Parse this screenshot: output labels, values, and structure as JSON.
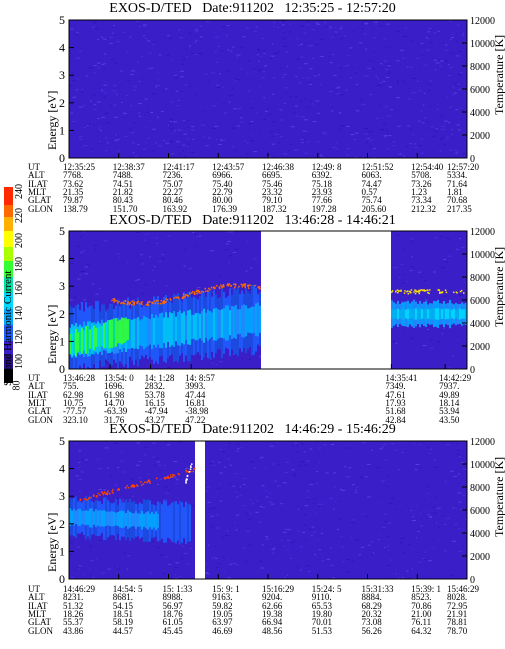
{
  "colors": {
    "background": "#3a1fc9",
    "speckle": [
      "#2a18b5",
      "#4a2fd9",
      "#3320c2",
      "#5a3be0"
    ],
    "spectrum": [
      "#1e90ff",
      "#00b0f0",
      "#00d9ff",
      "#00e38a",
      "#33ff33",
      "#ffff00",
      "#ff8c00",
      "#ff2200",
      "#d00000"
    ]
  },
  "colorbar": {
    "label": "Second Harmonic Current",
    "ticks": [
      "240",
      "220",
      "200",
      "180",
      "160",
      "140",
      "120",
      "100",
      "80"
    ]
  },
  "chart_data": [
    {
      "type": "heatmap",
      "title": "EXOS-D/TED   Date:911202   12:35:25 - 12:57:20",
      "ylabel": "Energy [eV]",
      "y2label": "Temperature [K]",
      "ylim": [
        0,
        5
      ],
      "y2lim": [
        0,
        12000
      ],
      "yticks": [
        "0",
        "1",
        "2",
        "3",
        "4",
        "5"
      ],
      "y2ticks": [
        "0",
        "2000",
        "4000",
        "6000",
        "8000",
        "10000",
        "12000"
      ],
      "ephemeris": {
        "UT": [
          "12:35:25",
          "12:38:37",
          "12:41:17",
          "12:43:57",
          "12:46:38",
          "12:49: 8",
          "12:51:52",
          "12:54:40",
          "12:57:20"
        ],
        "ALT": [
          "7768.",
          "7488.",
          "7236.",
          "6966.",
          "6695.",
          "6392.",
          "6063.",
          "5708.",
          "5334."
        ],
        "ILAT": [
          "73.62",
          "74.51",
          "75.07",
          "75.40",
          "75.46",
          "75.18",
          "74.47",
          "73.26",
          "71.64"
        ],
        "MLT": [
          "21.35",
          "21.82",
          "22.27",
          "22.79",
          "23.32",
          "23.93",
          "0.57",
          "1.23",
          "1.81"
        ],
        "GLAT": [
          "79.87",
          "80.43",
          "80.46",
          "80.00",
          "79.10",
          "77.66",
          "75.74",
          "73.34",
          "70.68"
        ],
        "GLON": [
          "138.79",
          "151.70",
          "163.92",
          "176.39",
          "187.32",
          "197.28",
          "205.60",
          "212.32",
          "217.35"
        ]
      }
    },
    {
      "type": "heatmap",
      "title": "EXOS-D/TED   Date:911202   13:46:28 - 14:46:21",
      "ylabel": "Energy [eV]",
      "y2label": "Temperature [K]",
      "ylim": [
        0,
        5
      ],
      "y2lim": [
        0,
        12000
      ],
      "yticks": [
        "0",
        "1",
        "2",
        "3",
        "4",
        "5"
      ],
      "y2ticks": [
        "0",
        "2000",
        "4000",
        "6000",
        "8000",
        "10000",
        "12000"
      ],
      "data_gap": "no data between 14: 8:57 and 14:35:41",
      "ephemeris": {
        "UT": [
          "13:46:28",
          "13:54: 0",
          "14: 1:28",
          "14: 8:57",
          "14:35:41",
          "14:42:29"
        ],
        "ALT": [
          "755.",
          "1696.",
          "2832.",
          "3993.",
          "7349.",
          "7937."
        ],
        "ILAT": [
          "62.98",
          "61.98",
          "53.78",
          "47.44",
          "47.61",
          "49.89"
        ],
        "MLT": [
          "10.75",
          "14.70",
          "16.15",
          "16.81",
          "17.93",
          "18.14"
        ],
        "GLAT": [
          "-77.57",
          "-63.39",
          "-47.94",
          "-38.98",
          "51.68",
          "53.94"
        ],
        "GLON": [
          "323.10",
          "31.76",
          "43.27",
          "47.22",
          "42.84",
          "43.50"
        ]
      }
    },
    {
      "type": "heatmap",
      "title": "EXOS-D/TED   Date:911202   14:46:29 - 15:46:29",
      "ylabel": "Energy [eV]",
      "y2label": "Temperature [K]",
      "ylim": [
        0,
        5
      ],
      "y2lim": [
        0,
        12000
      ],
      "yticks": [
        "0",
        "1",
        "2",
        "3",
        "4",
        "5"
      ],
      "y2ticks": [
        "0",
        "2000",
        "4000",
        "6000",
        "8000",
        "10000",
        "12000"
      ],
      "ephemeris": {
        "UT": [
          "14:46:29",
          "14:54: 5",
          "15: 1:33",
          "15: 9: 1",
          "15:16:29",
          "15:24: 5",
          "15:31:33",
          "15:39: 1",
          "15:46:29"
        ],
        "ALT": [
          "8231.",
          "8681.",
          "8988.",
          "9163.",
          "9204.",
          "9110.",
          "8884.",
          "8523.",
          "8028."
        ],
        "ILAT": [
          "51.32",
          "54.15",
          "56.97",
          "59.82",
          "62.66",
          "65.53",
          "68.29",
          "70.86",
          "72.95"
        ],
        "MLT": [
          "18.26",
          "18.51",
          "18.76",
          "19.05",
          "19.38",
          "19.80",
          "20.32",
          "21.00",
          "21.91"
        ],
        "GLAT": [
          "55.37",
          "58.19",
          "61.05",
          "63.97",
          "66.94",
          "70.01",
          "73.08",
          "76.11",
          "78.81"
        ],
        "GLON": [
          "43.86",
          "44.57",
          "45.45",
          "46.69",
          "48.56",
          "51.53",
          "56.26",
          "64.32",
          "78.70"
        ]
      }
    }
  ]
}
